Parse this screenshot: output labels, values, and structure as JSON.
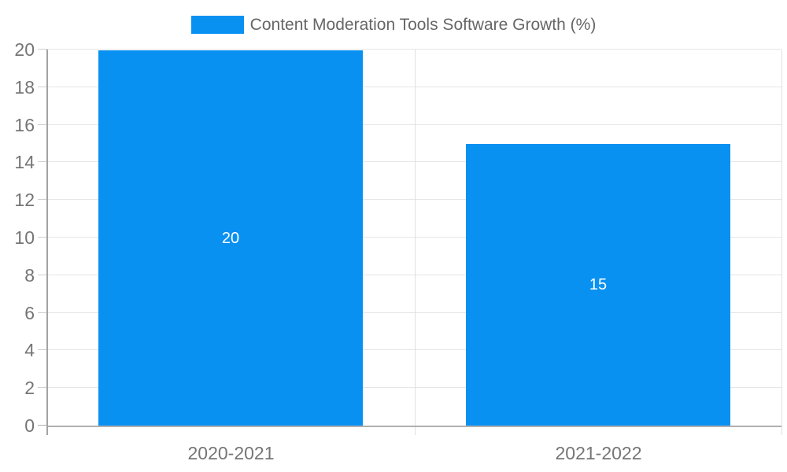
{
  "chart_data": {
    "type": "bar",
    "title": "Content Moderation Tools Software Growth (%)",
    "categories": [
      "2020-2021",
      "2021-2022"
    ],
    "series": [
      {
        "name": "Content Moderation Tools Software Growth (%)",
        "values": [
          20,
          15
        ]
      }
    ],
    "data_labels": [
      "20",
      "15"
    ],
    "xlabel": "",
    "ylabel": "",
    "ylim": [
      0,
      20
    ],
    "ytick_step": 2,
    "ytick_labels": [
      "0",
      "2",
      "4",
      "6",
      "8",
      "10",
      "12",
      "14",
      "16",
      "18",
      "20"
    ],
    "grid": true,
    "legend_position": "top",
    "colors": {
      "bar": "#0991f2",
      "grid_h": "#e6e6e6",
      "grid_v": "#e0e0e0",
      "tick": "#cfcfcf",
      "baseline": "#b0b0b0",
      "axis": "#a3a3a3",
      "tick_text": "#757575",
      "legend_text": "#666666",
      "data_label": "#ffffff",
      "background": "#ffffff"
    }
  },
  "legend": {
    "label": "Content Moderation Tools Software Growth (%)"
  }
}
